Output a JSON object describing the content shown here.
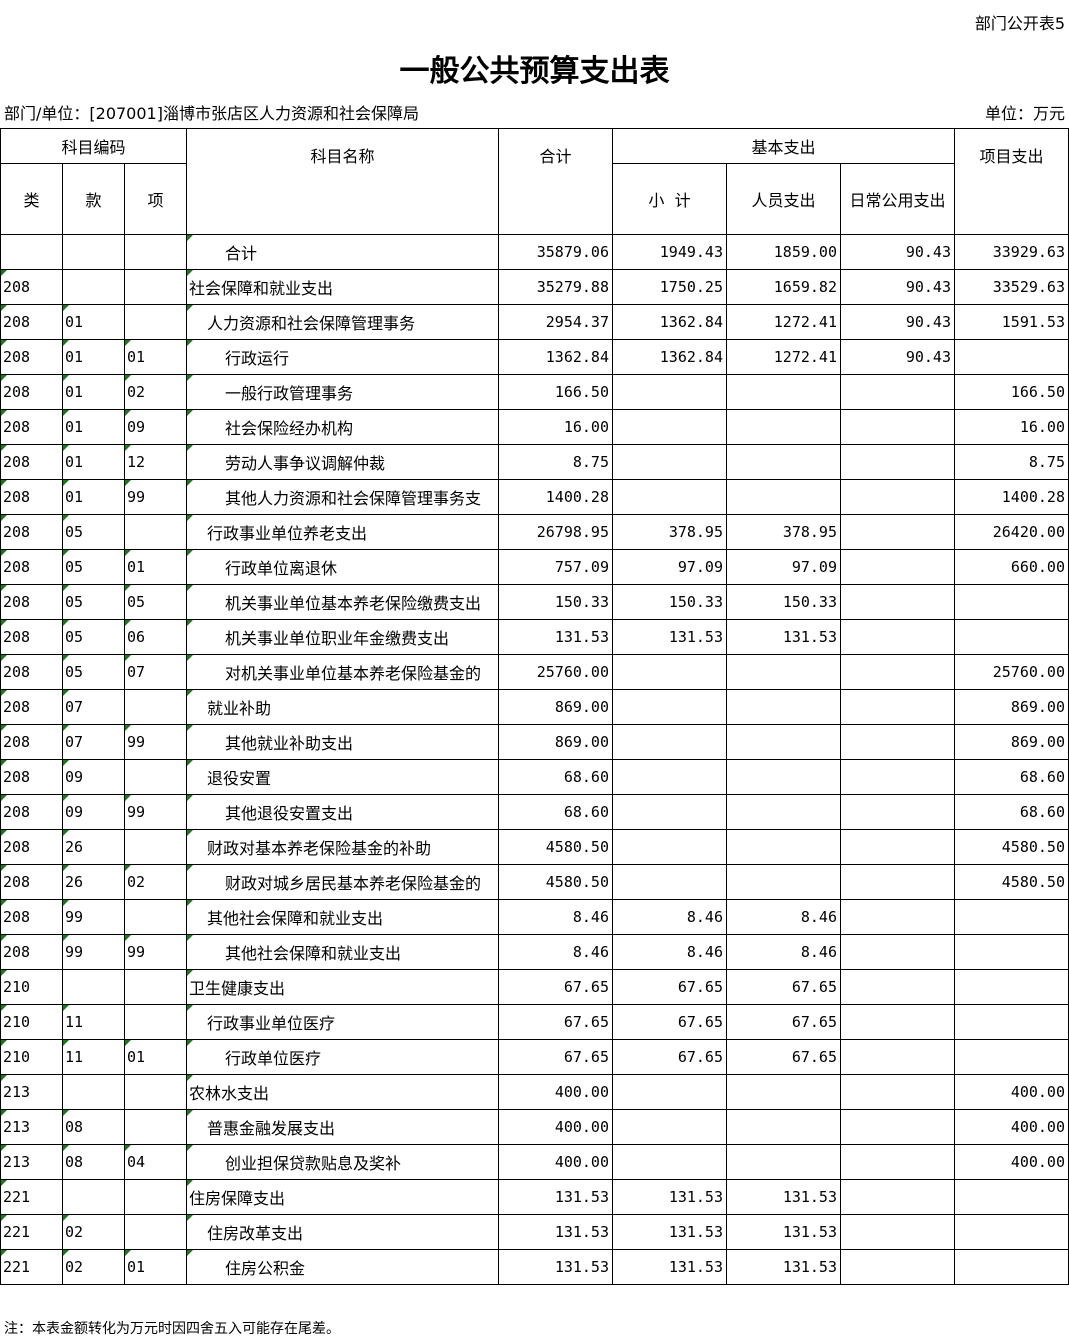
{
  "form_no": "部门公开表5",
  "title": "一般公共预算支出表",
  "department": "部门/单位：[207001]淄博市张店区人力资源和社会保障局",
  "unit": "单位：万元",
  "headers": {
    "code_group": "科目编码",
    "lei": "类",
    "kuan": "款",
    "xiang": "项",
    "name": "科目名称",
    "total": "合计",
    "basic_group": "基本支出",
    "subtotal": "小  计",
    "personnel": "人员支出",
    "public": "日常公用支出",
    "project": "项目支出"
  },
  "rows": [
    [
      "",
      "",
      "",
      "合计",
      3,
      "35879.06",
      "1949.43",
      "1859.00",
      "90.43",
      "33929.63"
    ],
    [
      "208",
      "",
      "",
      "社会保障和就业支出",
      1,
      "35279.88",
      "1750.25",
      "1659.82",
      "90.43",
      "33529.63"
    ],
    [
      "208",
      "01",
      "",
      "人力资源和社会保障管理事务",
      2,
      "2954.37",
      "1362.84",
      "1272.41",
      "90.43",
      "1591.53"
    ],
    [
      "208",
      "01",
      "01",
      "行政运行",
      3,
      "1362.84",
      "1362.84",
      "1272.41",
      "90.43",
      ""
    ],
    [
      "208",
      "01",
      "02",
      "一般行政管理事务",
      3,
      "166.50",
      "",
      "",
      "",
      "166.50"
    ],
    [
      "208",
      "01",
      "09",
      "社会保险经办机构",
      3,
      "16.00",
      "",
      "",
      "",
      "16.00"
    ],
    [
      "208",
      "01",
      "12",
      "劳动人事争议调解仲裁",
      3,
      "8.75",
      "",
      "",
      "",
      "8.75"
    ],
    [
      "208",
      "01",
      "99",
      "其他人力资源和社会保障管理事务支",
      3,
      "1400.28",
      "",
      "",
      "",
      "1400.28"
    ],
    [
      "208",
      "05",
      "",
      "行政事业单位养老支出",
      2,
      "26798.95",
      "378.95",
      "378.95",
      "",
      "26420.00"
    ],
    [
      "208",
      "05",
      "01",
      "行政单位离退休",
      3,
      "757.09",
      "97.09",
      "97.09",
      "",
      "660.00"
    ],
    [
      "208",
      "05",
      "05",
      "机关事业单位基本养老保险缴费支出",
      3,
      "150.33",
      "150.33",
      "150.33",
      "",
      ""
    ],
    [
      "208",
      "05",
      "06",
      "机关事业单位职业年金缴费支出",
      3,
      "131.53",
      "131.53",
      "131.53",
      "",
      ""
    ],
    [
      "208",
      "05",
      "07",
      "对机关事业单位基本养老保险基金的",
      3,
      "25760.00",
      "",
      "",
      "",
      "25760.00"
    ],
    [
      "208",
      "07",
      "",
      "就业补助",
      2,
      "869.00",
      "",
      "",
      "",
      "869.00"
    ],
    [
      "208",
      "07",
      "99",
      "其他就业补助支出",
      3,
      "869.00",
      "",
      "",
      "",
      "869.00"
    ],
    [
      "208",
      "09",
      "",
      "退役安置",
      2,
      "68.60",
      "",
      "",
      "",
      "68.60"
    ],
    [
      "208",
      "09",
      "99",
      "其他退役安置支出",
      3,
      "68.60",
      "",
      "",
      "",
      "68.60"
    ],
    [
      "208",
      "26",
      "",
      "财政对基本养老保险基金的补助",
      2,
      "4580.50",
      "",
      "",
      "",
      "4580.50"
    ],
    [
      "208",
      "26",
      "02",
      "财政对城乡居民基本养老保险基金的",
      3,
      "4580.50",
      "",
      "",
      "",
      "4580.50"
    ],
    [
      "208",
      "99",
      "",
      "其他社会保障和就业支出",
      2,
      "8.46",
      "8.46",
      "8.46",
      "",
      ""
    ],
    [
      "208",
      "99",
      "99",
      "其他社会保障和就业支出",
      3,
      "8.46",
      "8.46",
      "8.46",
      "",
      ""
    ],
    [
      "210",
      "",
      "",
      "卫生健康支出",
      1,
      "67.65",
      "67.65",
      "67.65",
      "",
      ""
    ],
    [
      "210",
      "11",
      "",
      "行政事业单位医疗",
      2,
      "67.65",
      "67.65",
      "67.65",
      "",
      ""
    ],
    [
      "210",
      "11",
      "01",
      "行政单位医疗",
      3,
      "67.65",
      "67.65",
      "67.65",
      "",
      ""
    ],
    [
      "213",
      "",
      "",
      "农林水支出",
      1,
      "400.00",
      "",
      "",
      "",
      "400.00"
    ],
    [
      "213",
      "08",
      "",
      "普惠金融发展支出",
      2,
      "400.00",
      "",
      "",
      "",
      "400.00"
    ],
    [
      "213",
      "08",
      "04",
      "创业担保贷款贴息及奖补",
      3,
      "400.00",
      "",
      "",
      "",
      "400.00"
    ],
    [
      "221",
      "",
      "",
      "住房保障支出",
      1,
      "131.53",
      "131.53",
      "131.53",
      "",
      ""
    ],
    [
      "221",
      "02",
      "",
      "住房改革支出",
      2,
      "131.53",
      "131.53",
      "131.53",
      "",
      ""
    ],
    [
      "221",
      "02",
      "01",
      "住房公积金",
      3,
      "131.53",
      "131.53",
      "131.53",
      "",
      ""
    ]
  ],
  "footnote": "注：本表金额转化为万元时因四舍五入可能存在尾差。",
  "colors": {
    "cell_marker": "#1a7a1a"
  }
}
